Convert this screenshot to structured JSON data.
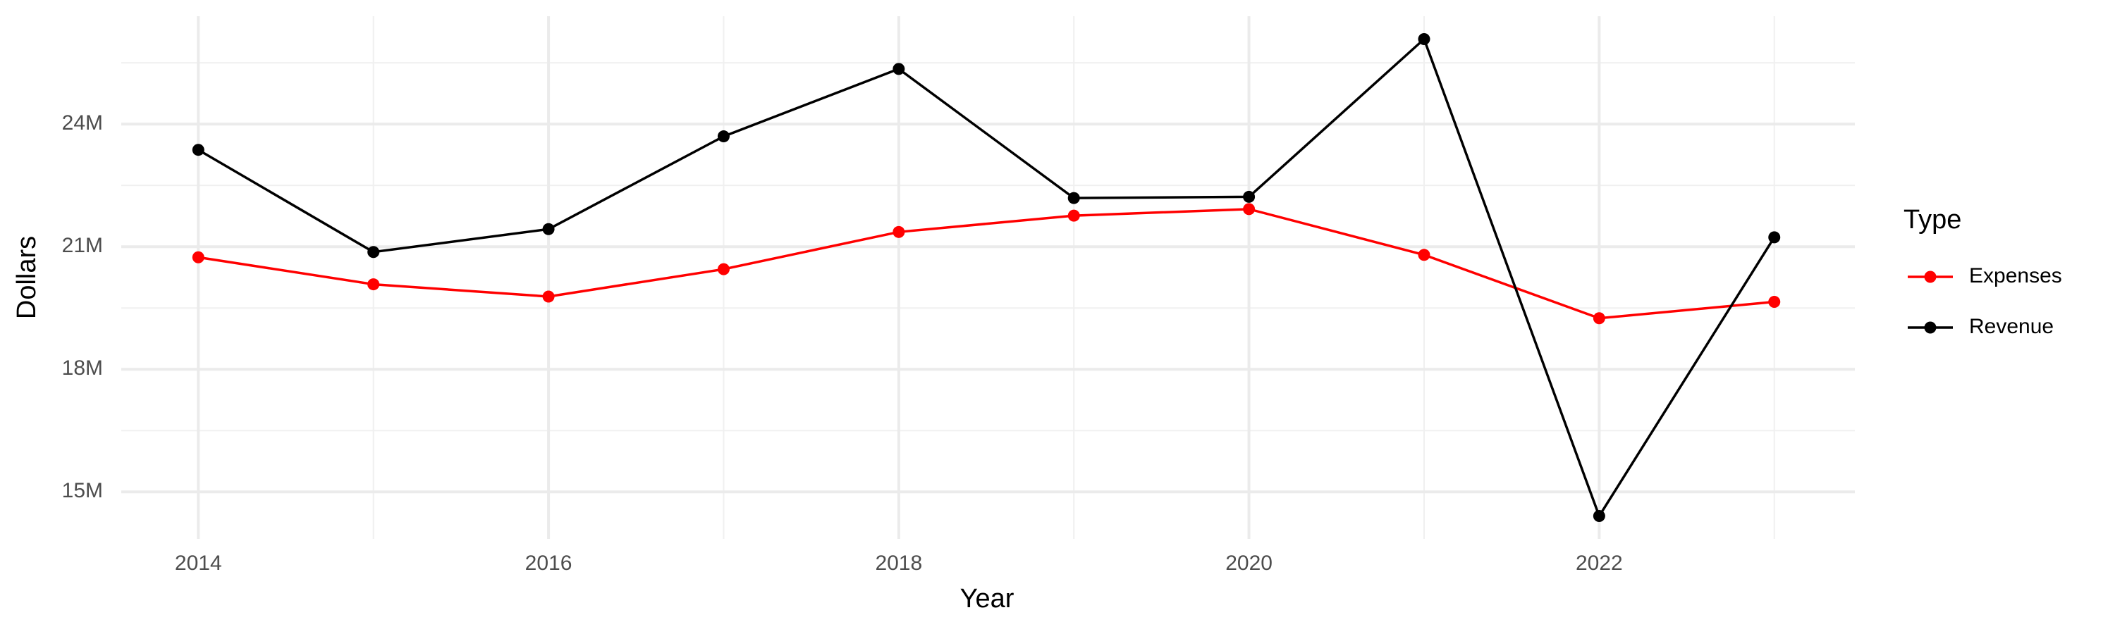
{
  "chart_data": {
    "type": "line",
    "x_label": "Year",
    "y_label": "Dollars",
    "legend_title": "Type",
    "x": [
      2014,
      2015,
      2016,
      2017,
      2018,
      2019,
      2020,
      2021,
      2022,
      2023
    ],
    "series": [
      {
        "name": "Expenses",
        "color": "#ff0000",
        "values": [
          20740000,
          20080000,
          19780000,
          20450000,
          21360000,
          21760000,
          21920000,
          20800000,
          19250000,
          19650000
        ]
      },
      {
        "name": "Revenue",
        "color": "#000000",
        "values": [
          23370000,
          20870000,
          21430000,
          23700000,
          25350000,
          22190000,
          22220000,
          26080000,
          14410000,
          21230000
        ]
      }
    ],
    "xlim": [
      2013.56,
      2023.46
    ],
    "xticks": [
      2014,
      2016,
      2018,
      2020,
      2022
    ],
    "ylim": [
      13850000,
      26640000
    ],
    "yticks": [
      {
        "value": 15000000,
        "label": "15M"
      },
      {
        "value": 18000000,
        "label": "18M"
      },
      {
        "value": 21000000,
        "label": "21M"
      },
      {
        "value": 24000000,
        "label": "24M"
      }
    ],
    "grid": true,
    "legend": "right"
  }
}
